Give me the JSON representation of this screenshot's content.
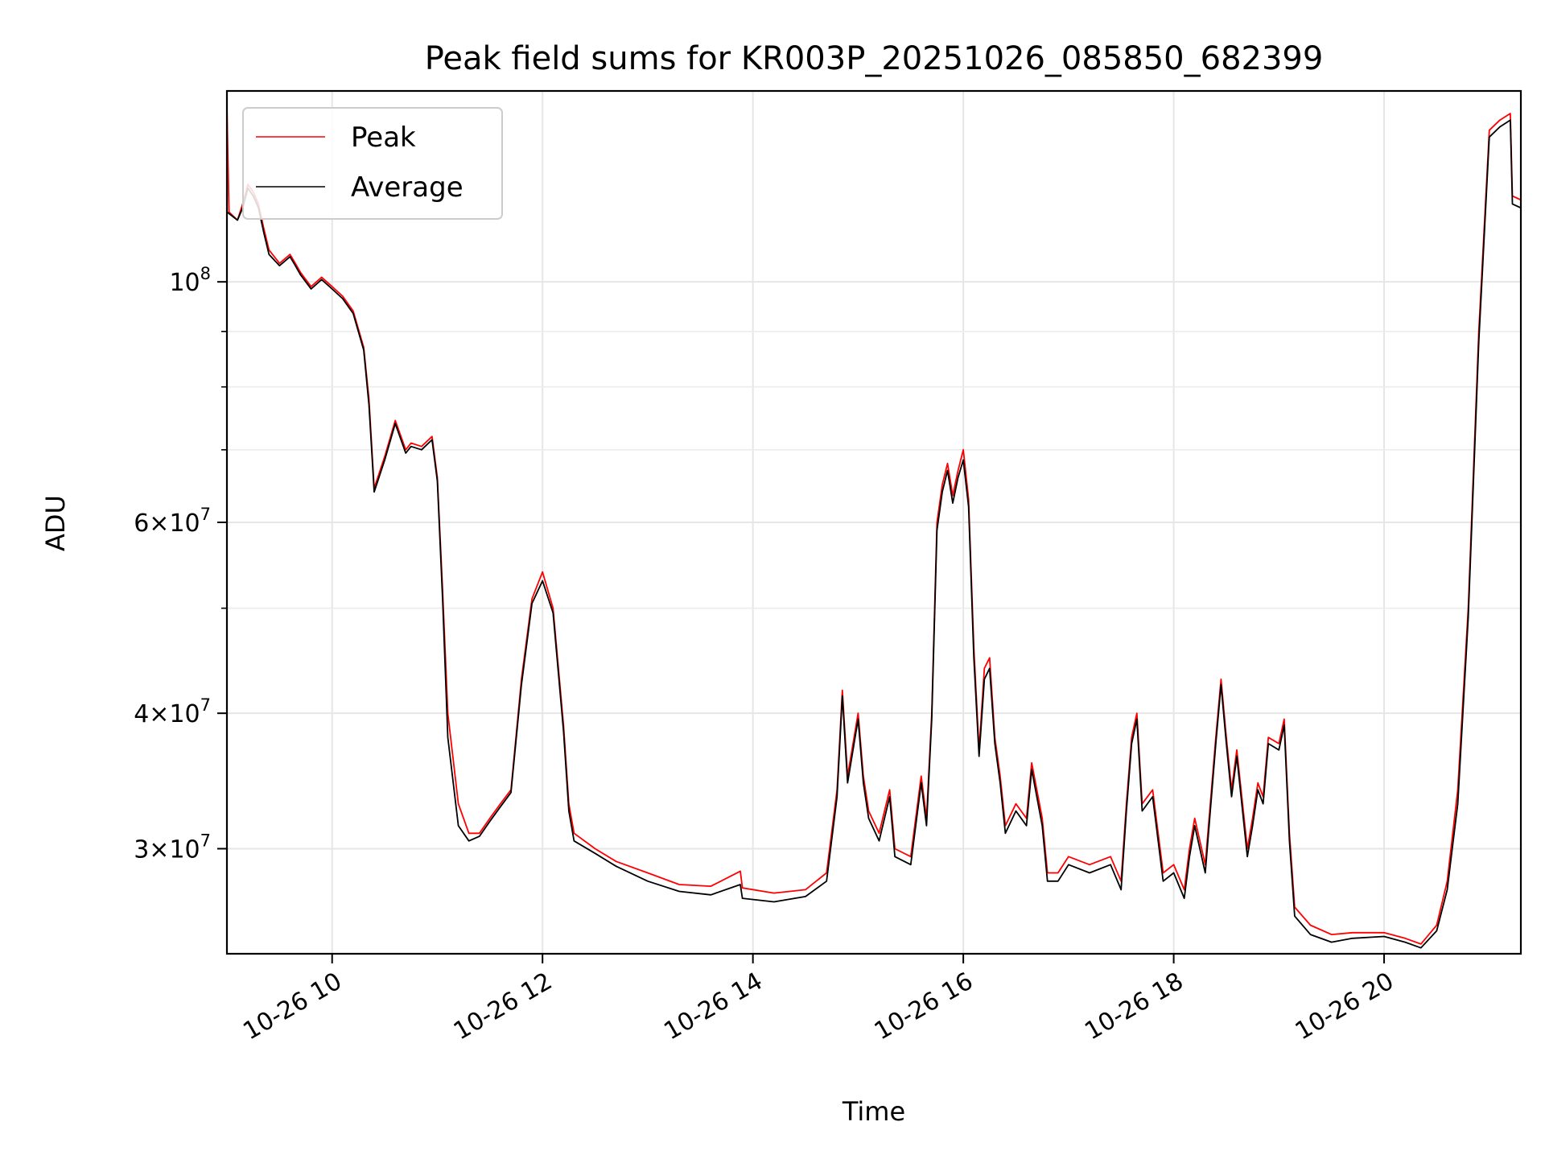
{
  "chart_data": {
    "type": "line",
    "title": "Peak field sums for KR003P_20251026_085850_682399",
    "xlabel": "Time",
    "ylabel": "ADU",
    "x_tick_labels": [
      "10-26 10",
      "10-26 12",
      "10-26 14",
      "10-26 16",
      "10-26 18",
      "10-26 20"
    ],
    "x_ticks_hours": [
      10,
      12,
      14,
      16,
      18,
      20
    ],
    "xlim_hours": [
      9.0,
      21.3
    ],
    "y_scale": "log",
    "ylim": [
      24000000,
      150000000
    ],
    "y_major_ticks": [
      {
        "value": 100000000,
        "base": "10",
        "exp": "8"
      },
      {
        "value": 60000000,
        "base": "6×10",
        "exp": "7"
      },
      {
        "value": 40000000,
        "base": "4×10",
        "exp": "7"
      },
      {
        "value": 30000000,
        "base": "3×10",
        "exp": "7"
      }
    ],
    "y_minor_ticks": [
      90000000,
      80000000,
      70000000,
      50000000
    ],
    "grid": true,
    "legend_position": "top-left",
    "series": [
      {
        "name": "Peak",
        "color": "#ff0000",
        "points": [
          [
            9.0,
            145000000
          ],
          [
            9.02,
            116000000
          ],
          [
            9.1,
            114000000
          ],
          [
            9.15,
            118000000
          ],
          [
            9.2,
            123000000
          ],
          [
            9.25,
            121000000
          ],
          [
            9.3,
            118000000
          ],
          [
            9.35,
            112000000
          ],
          [
            9.4,
            107000000
          ],
          [
            9.5,
            104000000
          ],
          [
            9.6,
            106000000
          ],
          [
            9.65,
            104000000
          ],
          [
            9.7,
            102000000
          ],
          [
            9.8,
            99000000
          ],
          [
            9.9,
            101000000
          ],
          [
            10.0,
            99000000
          ],
          [
            10.1,
            97000000
          ],
          [
            10.2,
            94000000
          ],
          [
            10.3,
            87000000
          ],
          [
            10.35,
            78000000
          ],
          [
            10.4,
            64500000
          ],
          [
            10.5,
            69000000
          ],
          [
            10.6,
            74500000
          ],
          [
            10.7,
            70000000
          ],
          [
            10.75,
            71000000
          ],
          [
            10.85,
            70500000
          ],
          [
            10.95,
            72000000
          ],
          [
            11.0,
            66000000
          ],
          [
            11.05,
            52000000
          ],
          [
            11.1,
            40000000
          ],
          [
            11.2,
            33000000
          ],
          [
            11.3,
            31000000
          ],
          [
            11.4,
            31000000
          ],
          [
            11.5,
            32000000
          ],
          [
            11.6,
            33000000
          ],
          [
            11.7,
            34000000
          ],
          [
            11.8,
            43000000
          ],
          [
            11.9,
            51000000
          ],
          [
            12.0,
            54000000
          ],
          [
            12.1,
            50000000
          ],
          [
            12.2,
            39000000
          ],
          [
            12.25,
            33000000
          ],
          [
            12.3,
            31000000
          ],
          [
            12.5,
            30000000
          ],
          [
            12.7,
            29200000
          ],
          [
            13.0,
            28500000
          ],
          [
            13.3,
            27800000
          ],
          [
            13.6,
            27700000
          ],
          [
            13.88,
            28600000
          ],
          [
            13.9,
            27600000
          ],
          [
            14.2,
            27300000
          ],
          [
            14.5,
            27500000
          ],
          [
            14.7,
            28500000
          ],
          [
            14.8,
            34000000
          ],
          [
            14.85,
            42000000
          ],
          [
            14.9,
            35000000
          ],
          [
            15.0,
            40000000
          ],
          [
            15.05,
            35000000
          ],
          [
            15.1,
            32500000
          ],
          [
            15.2,
            31000000
          ],
          [
            15.3,
            34000000
          ],
          [
            15.35,
            30000000
          ],
          [
            15.5,
            29500000
          ],
          [
            15.6,
            35000000
          ],
          [
            15.65,
            32000000
          ],
          [
            15.7,
            40000000
          ],
          [
            15.75,
            60000000
          ],
          [
            15.8,
            65000000
          ],
          [
            15.85,
            68000000
          ],
          [
            15.9,
            63500000
          ],
          [
            15.95,
            67000000
          ],
          [
            16.0,
            70000000
          ],
          [
            16.05,
            63000000
          ],
          [
            16.1,
            46000000
          ],
          [
            16.15,
            37000000
          ],
          [
            16.2,
            44000000
          ],
          [
            16.25,
            45000000
          ],
          [
            16.3,
            38000000
          ],
          [
            16.35,
            35000000
          ],
          [
            16.4,
            31500000
          ],
          [
            16.5,
            33000000
          ],
          [
            16.6,
            32000000
          ],
          [
            16.65,
            36000000
          ],
          [
            16.75,
            32000000
          ],
          [
            16.8,
            28500000
          ],
          [
            16.9,
            28500000
          ],
          [
            17.0,
            29500000
          ],
          [
            17.2,
            29000000
          ],
          [
            17.4,
            29500000
          ],
          [
            17.5,
            28000000
          ],
          [
            17.55,
            33000000
          ],
          [
            17.6,
            38000000
          ],
          [
            17.65,
            40000000
          ],
          [
            17.7,
            33000000
          ],
          [
            17.8,
            34000000
          ],
          [
            17.9,
            28500000
          ],
          [
            18.0,
            29000000
          ],
          [
            18.1,
            27500000
          ],
          [
            18.15,
            30000000
          ],
          [
            18.2,
            32000000
          ],
          [
            18.3,
            29000000
          ],
          [
            18.4,
            38000000
          ],
          [
            18.45,
            43000000
          ],
          [
            18.5,
            38000000
          ],
          [
            18.55,
            34000000
          ],
          [
            18.6,
            37000000
          ],
          [
            18.7,
            30000000
          ],
          [
            18.75,
            32000000
          ],
          [
            18.8,
            34500000
          ],
          [
            18.85,
            33500000
          ],
          [
            18.9,
            38000000
          ],
          [
            19.0,
            37500000
          ],
          [
            19.05,
            39500000
          ],
          [
            19.1,
            31000000
          ],
          [
            19.15,
            26500000
          ],
          [
            19.3,
            25500000
          ],
          [
            19.5,
            25000000
          ],
          [
            19.7,
            25100000
          ],
          [
            20.0,
            25100000
          ],
          [
            20.2,
            24800000
          ],
          [
            20.35,
            24500000
          ],
          [
            20.5,
            25500000
          ],
          [
            20.6,
            28000000
          ],
          [
            20.7,
            34000000
          ],
          [
            20.8,
            50000000
          ],
          [
            20.9,
            90000000
          ],
          [
            21.0,
            138000000
          ],
          [
            21.1,
            141000000
          ],
          [
            21.2,
            143000000
          ],
          [
            21.22,
            120000000
          ],
          [
            21.3,
            119000000
          ]
        ]
      },
      {
        "name": "Average",
        "color": "#000000",
        "points": [
          [
            9.0,
            116000000
          ],
          [
            9.1,
            114000000
          ],
          [
            9.15,
            117000000
          ],
          [
            9.2,
            122000000
          ],
          [
            9.25,
            120000000
          ],
          [
            9.3,
            117000000
          ],
          [
            9.35,
            111000000
          ],
          [
            9.4,
            106000000
          ],
          [
            9.5,
            103500000
          ],
          [
            9.6,
            105500000
          ],
          [
            9.65,
            103500000
          ],
          [
            9.7,
            101500000
          ],
          [
            9.8,
            98500000
          ],
          [
            9.9,
            100500000
          ],
          [
            10.0,
            98500000
          ],
          [
            10.1,
            96500000
          ],
          [
            10.2,
            93500000
          ],
          [
            10.3,
            86500000
          ],
          [
            10.35,
            77000000
          ],
          [
            10.4,
            64000000
          ],
          [
            10.5,
            68500000
          ],
          [
            10.6,
            74000000
          ],
          [
            10.7,
            69500000
          ],
          [
            10.75,
            70500000
          ],
          [
            10.85,
            70000000
          ],
          [
            10.95,
            71500000
          ],
          [
            11.0,
            65500000
          ],
          [
            11.05,
            51000000
          ],
          [
            11.1,
            38000000
          ],
          [
            11.2,
            31500000
          ],
          [
            11.3,
            30500000
          ],
          [
            11.4,
            30800000
          ],
          [
            11.5,
            31800000
          ],
          [
            11.6,
            32800000
          ],
          [
            11.7,
            33800000
          ],
          [
            11.8,
            42500000
          ],
          [
            11.9,
            50500000
          ],
          [
            12.0,
            53000000
          ],
          [
            12.1,
            49500000
          ],
          [
            12.2,
            38500000
          ],
          [
            12.25,
            32500000
          ],
          [
            12.3,
            30500000
          ],
          [
            12.5,
            29700000
          ],
          [
            12.7,
            28900000
          ],
          [
            13.0,
            28000000
          ],
          [
            13.3,
            27400000
          ],
          [
            13.6,
            27200000
          ],
          [
            13.88,
            27800000
          ],
          [
            13.9,
            27000000
          ],
          [
            14.2,
            26800000
          ],
          [
            14.5,
            27100000
          ],
          [
            14.7,
            28000000
          ],
          [
            14.8,
            33500000
          ],
          [
            14.85,
            41500000
          ],
          [
            14.9,
            34500000
          ],
          [
            15.0,
            39500000
          ],
          [
            15.05,
            34500000
          ],
          [
            15.1,
            32000000
          ],
          [
            15.2,
            30500000
          ],
          [
            15.3,
            33500000
          ],
          [
            15.35,
            29500000
          ],
          [
            15.5,
            29000000
          ],
          [
            15.6,
            34500000
          ],
          [
            15.65,
            31500000
          ],
          [
            15.7,
            39500000
          ],
          [
            15.75,
            59000000
          ],
          [
            15.8,
            64000000
          ],
          [
            15.85,
            67000000
          ],
          [
            15.9,
            62500000
          ],
          [
            15.95,
            66000000
          ],
          [
            16.0,
            68500000
          ],
          [
            16.05,
            62000000
          ],
          [
            16.1,
            45000000
          ],
          [
            16.15,
            36500000
          ],
          [
            16.2,
            43000000
          ],
          [
            16.25,
            44000000
          ],
          [
            16.3,
            37500000
          ],
          [
            16.35,
            34500000
          ],
          [
            16.4,
            31000000
          ],
          [
            16.5,
            32500000
          ],
          [
            16.6,
            31500000
          ],
          [
            16.65,
            35500000
          ],
          [
            16.75,
            31500000
          ],
          [
            16.8,
            28000000
          ],
          [
            16.9,
            28000000
          ],
          [
            17.0,
            29000000
          ],
          [
            17.2,
            28500000
          ],
          [
            17.4,
            29000000
          ],
          [
            17.5,
            27500000
          ],
          [
            17.55,
            32500000
          ],
          [
            17.6,
            37500000
          ],
          [
            17.65,
            39500000
          ],
          [
            17.7,
            32500000
          ],
          [
            17.8,
            33500000
          ],
          [
            17.9,
            28000000
          ],
          [
            18.0,
            28500000
          ],
          [
            18.1,
            27000000
          ],
          [
            18.15,
            29500000
          ],
          [
            18.2,
            31500000
          ],
          [
            18.3,
            28500000
          ],
          [
            18.4,
            37500000
          ],
          [
            18.45,
            42500000
          ],
          [
            18.5,
            37500000
          ],
          [
            18.55,
            33500000
          ],
          [
            18.6,
            36500000
          ],
          [
            18.7,
            29500000
          ],
          [
            18.75,
            31500000
          ],
          [
            18.8,
            34000000
          ],
          [
            18.85,
            33000000
          ],
          [
            18.9,
            37500000
          ],
          [
            19.0,
            37000000
          ],
          [
            19.05,
            39000000
          ],
          [
            19.1,
            30500000
          ],
          [
            19.15,
            26000000
          ],
          [
            19.3,
            25000000
          ],
          [
            19.5,
            24600000
          ],
          [
            19.7,
            24800000
          ],
          [
            20.0,
            24900000
          ],
          [
            20.2,
            24600000
          ],
          [
            20.35,
            24300000
          ],
          [
            20.5,
            25200000
          ],
          [
            20.6,
            27500000
          ],
          [
            20.7,
            33000000
          ],
          [
            20.8,
            49000000
          ],
          [
            20.9,
            88000000
          ],
          [
            21.0,
            136000000
          ],
          [
            21.1,
            139000000
          ],
          [
            21.2,
            141000000
          ],
          [
            21.22,
            118000000
          ],
          [
            21.3,
            117000000
          ]
        ]
      }
    ]
  }
}
